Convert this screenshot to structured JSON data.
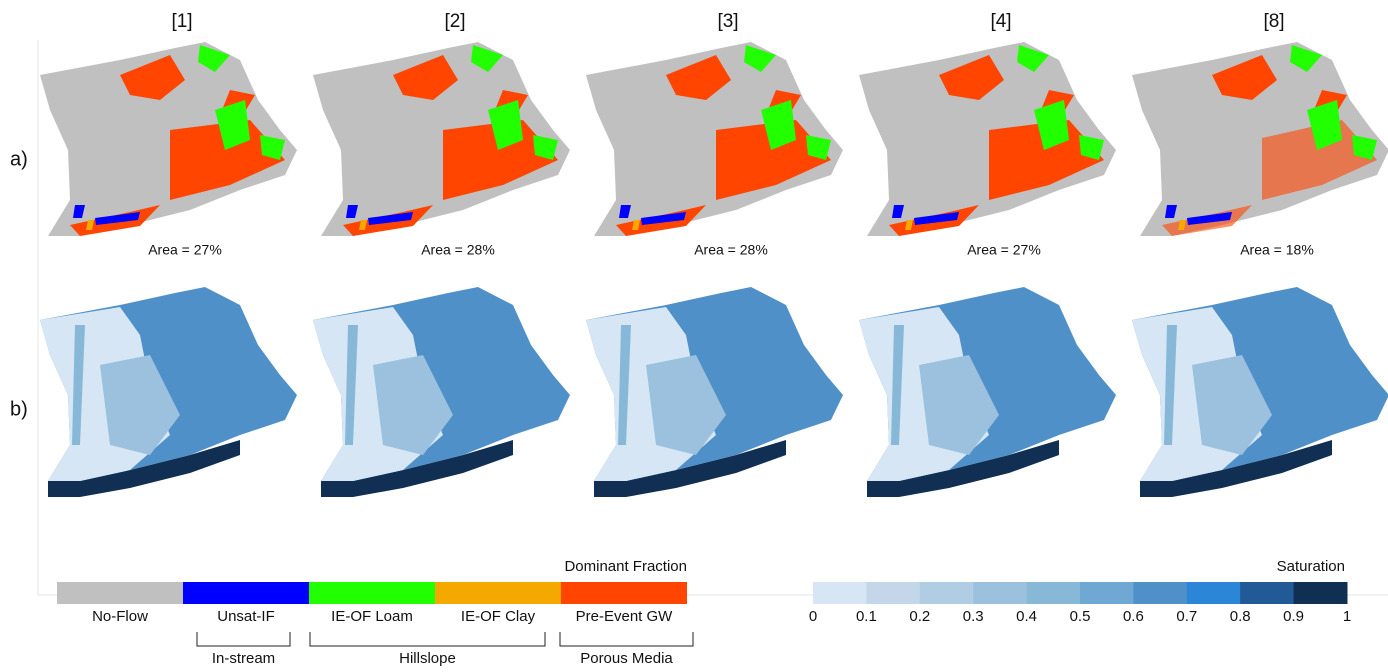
{
  "columns": [
    {
      "label": "[1]",
      "area": "Area = 27%"
    },
    {
      "label": "[2]",
      "area": "Area = 28%"
    },
    {
      "label": "[3]",
      "area": "Area = 28%"
    },
    {
      "label": "[4]",
      "area": "Area = 27%"
    },
    {
      "label": "[8]",
      "area": "Area = 18%"
    }
  ],
  "rows": [
    "a)",
    "b)"
  ],
  "dominant_fraction": {
    "title": "Dominant Fraction",
    "classes": [
      {
        "name": "No-Flow",
        "color": "#c0c0c0"
      },
      {
        "name": "Unsat-IF",
        "color": "#0000ff"
      },
      {
        "name": "IE-OF Loam",
        "color": "#22ff00"
      },
      {
        "name": "IE-OF Clay",
        "color": "#f5a800"
      },
      {
        "name": "Pre-Event GW",
        "color": "#ff4500"
      }
    ],
    "groups": [
      {
        "label": "In-stream"
      },
      {
        "label": "Hillslope"
      },
      {
        "label": "Porous Media"
      }
    ]
  },
  "saturation": {
    "title": "Saturation",
    "ticks": [
      "0",
      "0.1",
      "0.2",
      "0.3",
      "0.4",
      "0.5",
      "0.6",
      "0.7",
      "0.8",
      "0.9",
      "1"
    ],
    "colors": [
      "#d6e6f4",
      "#c3d6ea",
      "#b0cde4",
      "#9cc1de",
      "#88b8d8",
      "#6fa9d3",
      "#4f90c8",
      "#2b86d8",
      "#215a96",
      "#102f52"
    ]
  }
}
